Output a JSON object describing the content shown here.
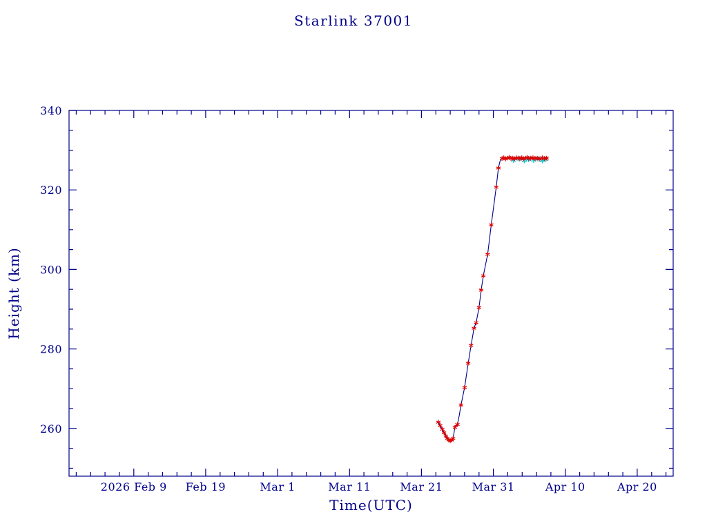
{
  "page": {
    "background": "#ffffff"
  },
  "chart_data": {
    "type": "line",
    "title": "Starlink 37001",
    "xlabel": "Time(UTC)",
    "ylabel": "Height (km)",
    "x_unit": "days since 2026 Feb 9",
    "xlim": [
      -9,
      75
    ],
    "ylim": [
      248,
      340
    ],
    "grid": false,
    "legend": "none",
    "x_major_ticks": [
      {
        "value": 0,
        "label": "2026 Feb 9"
      },
      {
        "value": 10,
        "label": "Feb 19"
      },
      {
        "value": 20,
        "label": "Mar 1"
      },
      {
        "value": 30,
        "label": "Mar 11"
      },
      {
        "value": 40,
        "label": "Mar 21"
      },
      {
        "value": 50,
        "label": "Mar 31"
      },
      {
        "value": 60,
        "label": "Apr 10"
      },
      {
        "value": 70,
        "label": "Apr 20"
      }
    ],
    "x_minor_step": 2,
    "y_major_ticks": [
      260,
      280,
      300,
      320,
      340
    ],
    "y_minor_step": 5,
    "colors": {
      "axis": "#00008B",
      "line": "#00008B",
      "observed": "#DD0000",
      "predicted": "#00C2CB"
    },
    "series": [
      {
        "name": "model-line",
        "type": "line",
        "color_key": "line",
        "points": [
          [
            42.3,
            261.8
          ],
          [
            42.6,
            260.7
          ],
          [
            42.9,
            259.8
          ],
          [
            43.15,
            258.9
          ],
          [
            43.4,
            258.1
          ],
          [
            43.6,
            257.5
          ],
          [
            43.8,
            257.1
          ],
          [
            44.0,
            256.9
          ],
          [
            44.2,
            257.0
          ],
          [
            44.4,
            257.6
          ],
          [
            44.65,
            260.3
          ],
          [
            45.0,
            261.0
          ],
          [
            45.25,
            263.2
          ],
          [
            45.5,
            265.9
          ],
          [
            46.0,
            270.3
          ],
          [
            46.5,
            276.4
          ],
          [
            46.9,
            280.9
          ],
          [
            47.3,
            285.2
          ],
          [
            47.6,
            286.6
          ],
          [
            48.0,
            290.4
          ],
          [
            48.3,
            294.8
          ],
          [
            48.6,
            298.4
          ],
          [
            49.2,
            303.8
          ],
          [
            49.7,
            311.2
          ],
          [
            50.4,
            320.7
          ],
          [
            50.7,
            325.5
          ],
          [
            50.9,
            327.1
          ],
          [
            51.1,
            327.8
          ],
          [
            51.3,
            328.0
          ],
          [
            57.5,
            328.0
          ]
        ]
      },
      {
        "name": "predicted-points",
        "type": "asterisk",
        "color_key": "predicted",
        "size": 4,
        "points": [
          [
            52.8,
            327.5
          ],
          [
            53.6,
            327.8
          ],
          [
            54.3,
            327.4
          ],
          [
            54.9,
            327.7
          ],
          [
            55.6,
            327.5
          ],
          [
            56.2,
            327.8
          ],
          [
            56.8,
            327.4
          ],
          [
            57.3,
            327.7
          ]
        ]
      },
      {
        "name": "observed-points",
        "type": "asterisk",
        "color_key": "observed",
        "size": 3.4,
        "points": [
          [
            42.35,
            261.6
          ],
          [
            42.6,
            260.7
          ],
          [
            42.9,
            259.8
          ],
          [
            43.15,
            258.9
          ],
          [
            43.4,
            258.1
          ],
          [
            43.6,
            257.5
          ],
          [
            43.8,
            257.1
          ],
          [
            44.0,
            256.9
          ],
          [
            44.2,
            257.1
          ],
          [
            44.4,
            257.5
          ],
          [
            44.65,
            260.3
          ],
          [
            45.0,
            261.0
          ],
          [
            45.5,
            265.9
          ],
          [
            46.0,
            270.3
          ],
          [
            46.5,
            276.4
          ],
          [
            46.9,
            280.9
          ],
          [
            47.3,
            285.2
          ],
          [
            47.6,
            286.6
          ],
          [
            48.0,
            290.4
          ],
          [
            48.3,
            294.8
          ],
          [
            48.6,
            298.4
          ],
          [
            49.2,
            303.8
          ],
          [
            49.7,
            311.2
          ],
          [
            50.4,
            320.7
          ],
          [
            50.7,
            325.5
          ],
          [
            51.2,
            327.9
          ],
          [
            51.45,
            328.1
          ],
          [
            51.7,
            327.8
          ],
          [
            51.95,
            328.0
          ],
          [
            52.2,
            328.2
          ],
          [
            52.45,
            327.9
          ],
          [
            52.7,
            328.0
          ],
          [
            52.95,
            327.8
          ],
          [
            53.2,
            328.1
          ],
          [
            53.45,
            328.0
          ],
          [
            53.7,
            327.9
          ],
          [
            53.95,
            328.1
          ],
          [
            54.2,
            327.8
          ],
          [
            54.45,
            328.0
          ],
          [
            54.7,
            328.2
          ],
          [
            54.95,
            327.9
          ],
          [
            55.2,
            328.0
          ],
          [
            55.5,
            328.1
          ],
          [
            55.8,
            327.9
          ],
          [
            56.1,
            328.0
          ],
          [
            56.45,
            327.8
          ],
          [
            56.8,
            328.1
          ],
          [
            57.1,
            327.9
          ],
          [
            57.4,
            328.0
          ]
        ]
      }
    ]
  }
}
